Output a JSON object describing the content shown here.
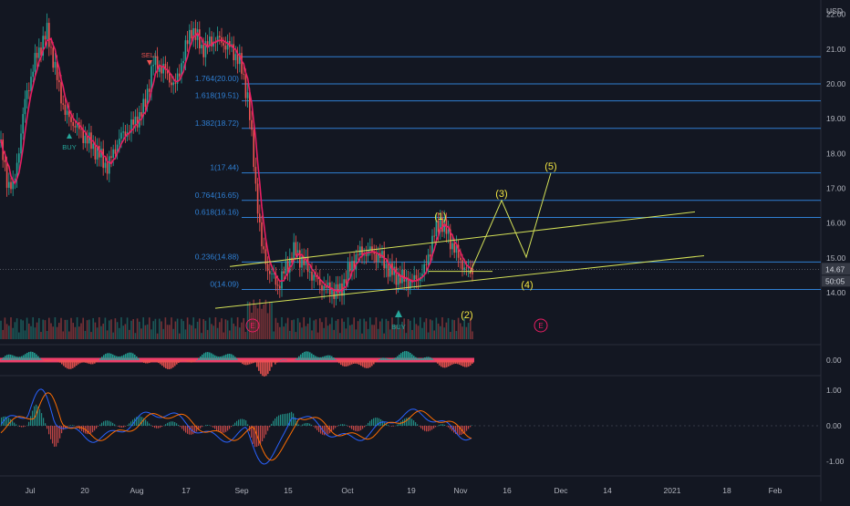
{
  "currency": "USD",
  "colors": {
    "background": "#131722",
    "fib_line": "#2f7fd3",
    "bull": "#26a69a",
    "bear": "#ef5350",
    "ma": "#e91e63",
    "wave": "#d4e157",
    "wave_label": "#f0e442",
    "macd": "#2962ff",
    "signal": "#ff6d00",
    "axis_text": "#b2b5be",
    "price_tag": "#363a45",
    "earnings": "#e91e63"
  },
  "chart_data": {
    "type": "candlestick",
    "price_axis": {
      "min": 13.5,
      "max": 22.2,
      "ticks": [
        "22.00",
        "21.00",
        "20.00",
        "19.00",
        "18.00",
        "17.00",
        "16.00",
        "15.00",
        "14.00"
      ]
    },
    "histogram_axis": {
      "ticks": [
        "0.00"
      ]
    },
    "oscillator_axis": {
      "ticks": [
        "1.00",
        "0.00",
        "-1.00"
      ]
    },
    "time_axis": [
      "Jul",
      "20",
      "Aug",
      "17",
      "Sep",
      "15",
      "Oct",
      "19",
      "Nov",
      "16",
      "Dec",
      "14",
      "2021",
      "18",
      "Feb"
    ],
    "last_price": "14.67",
    "countdown": "50:05",
    "fib_levels": [
      {
        "label": "",
        "value": 20.78
      },
      {
        "label": "1.764(20.00)",
        "value": 20.0
      },
      {
        "label": "1.618(19.51)",
        "value": 19.51
      },
      {
        "label": "1.382(18.72)",
        "value": 18.72
      },
      {
        "label": "1(17.44)",
        "value": 17.44
      },
      {
        "label": "0.764(16.65)",
        "value": 16.65
      },
      {
        "label": "0.618(16.16)",
        "value": 16.16
      },
      {
        "label": "0.236(14.88)",
        "value": 14.88
      },
      {
        "label": "0(14.09)",
        "value": 14.09
      }
    ],
    "wave_labels": [
      "(1)",
      "(2)",
      "(3)",
      "(4)",
      "(5)"
    ],
    "signals": [
      "BUY",
      "SELL",
      "BUY"
    ],
    "earnings_marker": "E"
  }
}
